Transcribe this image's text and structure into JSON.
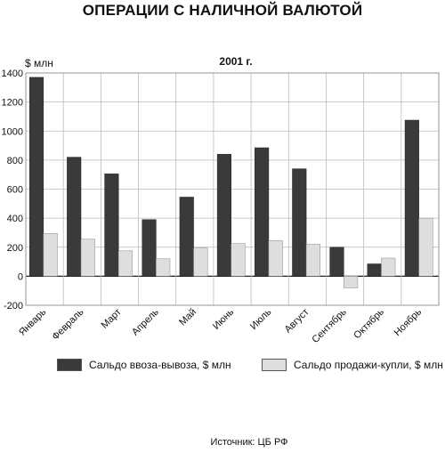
{
  "chart_data": {
    "type": "bar",
    "title": "ОПЕРАЦИИ С НАЛИЧНОЙ ВАЛЮТОЙ",
    "subtitle": "2001 г.",
    "ylabel": "$ млн",
    "ylim": [
      -200,
      1400
    ],
    "yticks": [
      -200,
      0,
      200,
      400,
      600,
      800,
      1000,
      1200,
      1400
    ],
    "grid": true,
    "legend_position": "bottom",
    "categories": [
      "Январь",
      "Февраль",
      "Март",
      "Апрель",
      "Май",
      "Июнь",
      "Июль",
      "Август",
      "Сентябрь",
      "Октябрь",
      "Ноябрь"
    ],
    "series": [
      {
        "name": "Сальдо ввоза-вывоза, $ млн",
        "color": "#3a3a3a",
        "values": [
          1370,
          820,
          705,
          390,
          545,
          840,
          885,
          740,
          200,
          85,
          1075
        ]
      },
      {
        "name": "Сальдо продажи-купли, $ млн",
        "color": "#dedede",
        "values": [
          295,
          255,
          175,
          120,
          195,
          225,
          245,
          220,
          -80,
          125,
          400
        ]
      }
    ],
    "source": "Источник: ЦБ РФ"
  }
}
